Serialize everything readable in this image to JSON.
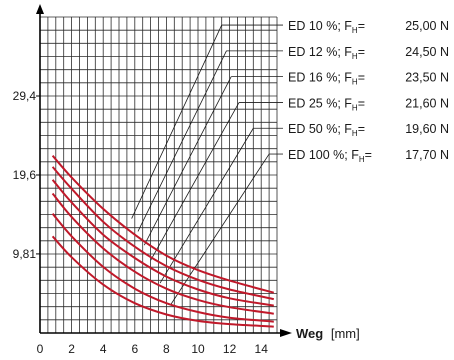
{
  "chart_data": {
    "type": "line",
    "title": "",
    "xlabel": "Weg",
    "xunit": "[mm]",
    "ylabel": "",
    "xlim": [
      0,
      15
    ],
    "ylim": [
      0,
      39.2
    ],
    "xticks": [
      "0",
      "2",
      "4",
      "6",
      "8",
      "10",
      "12",
      "14"
    ],
    "yticks": [
      {
        "value": 9.81,
        "label": "9,81"
      },
      {
        "value": 19.6,
        "label": "19,6"
      },
      {
        "value": 29.4,
        "label": "29,4"
      }
    ],
    "grid": true,
    "curve_color": "#c0192a",
    "legend_placement": "right",
    "legend": [
      {
        "label": "ED  10 %;  F",
        "sub": "H",
        "eq": "=",
        "force": "25,00 N"
      },
      {
        "label": "ED  12 %;  F",
        "sub": "H",
        "eq": "=",
        "force": "24,50 N"
      },
      {
        "label": "ED  16 %;  F",
        "sub": "H",
        "eq": "=",
        "force": "23,50 N"
      },
      {
        "label": "ED  25 %;  F",
        "sub": "H",
        "eq": "=",
        "force": "21,60 N"
      },
      {
        "label": "ED  50 %;  F",
        "sub": "H",
        "eq": "=",
        "force": "19,60 N"
      },
      {
        "label": "ED 100 %;  F",
        "sub": "H",
        "eq": "=",
        "force": "17,70 N"
      }
    ],
    "series": [
      {
        "x": [
          0.8,
          2,
          4,
          6,
          8,
          10,
          12,
          14.8
        ],
        "y": [
          22.0,
          19.3,
          15.4,
          12.2,
          9.6,
          7.8,
          6.5,
          5.0
        ]
      },
      {
        "x": [
          0.8,
          2,
          4,
          6,
          8,
          10,
          12,
          14.8
        ],
        "y": [
          20.6,
          17.9,
          13.8,
          10.7,
          8.3,
          6.6,
          5.4,
          4.2
        ]
      },
      {
        "x": [
          0.8,
          2,
          4,
          6,
          8,
          10,
          12,
          14.8
        ],
        "y": [
          19.0,
          16.2,
          12.2,
          9.3,
          7.0,
          5.4,
          4.3,
          3.4
        ]
      },
      {
        "x": [
          0.8,
          2,
          4,
          6,
          8,
          10,
          12,
          14.8
        ],
        "y": [
          17.3,
          14.4,
          10.5,
          7.6,
          5.5,
          4.1,
          3.2,
          2.4
        ]
      },
      {
        "x": [
          0.8,
          2,
          4,
          6,
          8,
          10,
          12,
          14.8
        ],
        "y": [
          14.8,
          12.0,
          8.2,
          5.5,
          3.7,
          2.6,
          1.9,
          1.4
        ]
      },
      {
        "x": [
          0.8,
          2,
          4,
          6,
          8,
          10,
          12,
          14.8
        ],
        "y": [
          12.0,
          9.4,
          6.0,
          3.7,
          2.3,
          1.5,
          1.1,
          0.8
        ]
      }
    ],
    "leader_lines": [
      {
        "x1": 5.8,
        "y1": 14.2,
        "x2": 11.5,
        "y2": 38.2
      },
      {
        "x1": 6.2,
        "y1": 12.6,
        "x2": 11.8,
        "y2": 35.0
      },
      {
        "x1": 6.6,
        "y1": 10.9,
        "x2": 12.1,
        "y2": 31.8
      },
      {
        "x1": 7.0,
        "y1": 9.0,
        "x2": 12.6,
        "y2": 28.6
      },
      {
        "x1": 7.6,
        "y1": 6.2,
        "x2": 13.5,
        "y2": 25.4
      },
      {
        "x1": 8.3,
        "y1": 3.6,
        "x2": 14.5,
        "y2": 22.2
      }
    ]
  }
}
